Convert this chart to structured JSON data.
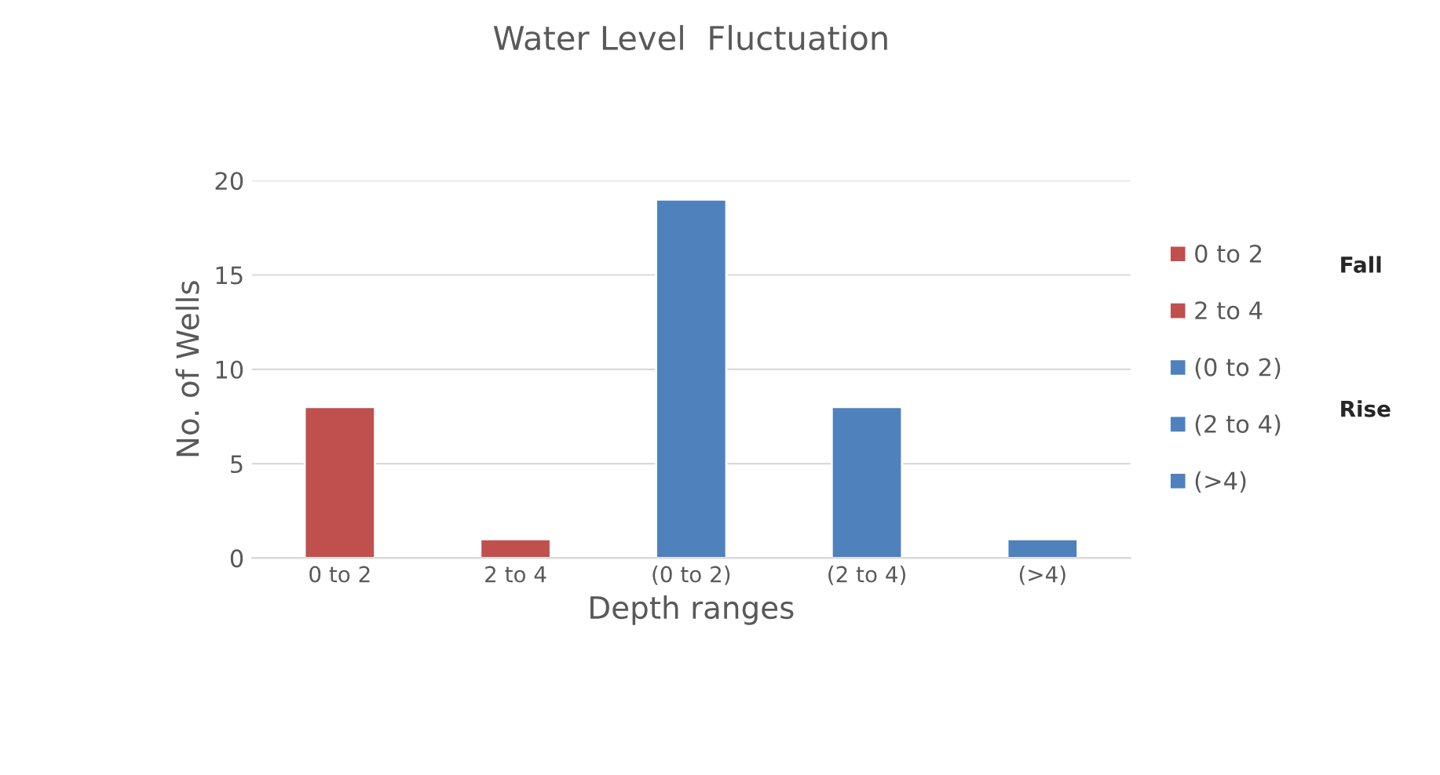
{
  "chart_data": {
    "type": "bar",
    "title": "Water Level  Fluctuation",
    "xlabel": "Depth ranges",
    "ylabel": "No. of Wells",
    "categories": [
      "0 to 2",
      "2 to 4",
      "(0 to 2)",
      "(2 to 4)",
      "(>4)"
    ],
    "series": [
      {
        "name": "0 to 2",
        "color": "#c0504d",
        "values": [
          8,
          null,
          null,
          null,
          null
        ]
      },
      {
        "name": "2 to 4",
        "color": "#c0504d",
        "values": [
          null,
          1,
          null,
          null,
          null
        ]
      },
      {
        "name": "(0 to 2)",
        "color": "#4f81bd",
        "values": [
          null,
          null,
          19,
          null,
          null
        ]
      },
      {
        "name": "(2 to 4)",
        "color": "#4f81bd",
        "values": [
          null,
          null,
          null,
          8,
          null
        ]
      },
      {
        "name": "(>4)",
        "color": "#4f81bd",
        "values": [
          null,
          null,
          null,
          null,
          1
        ]
      }
    ],
    "ylim": [
      0,
      20
    ],
    "yticks": [
      0,
      5,
      10,
      15,
      20
    ],
    "grid": "y",
    "legend": "right",
    "annotations": [
      "Fall",
      "Rise"
    ]
  }
}
